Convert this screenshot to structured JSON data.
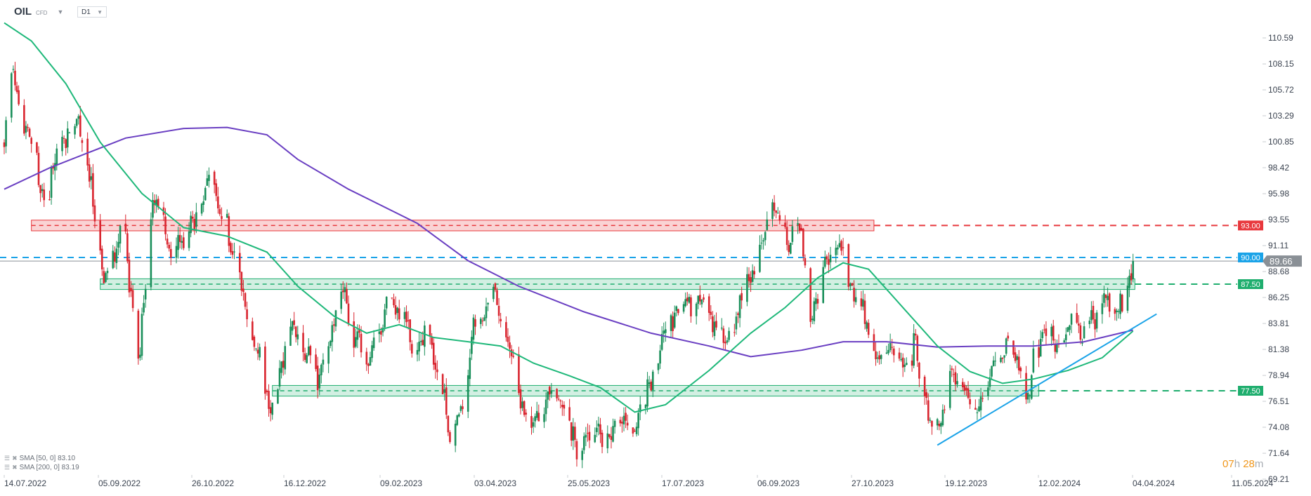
{
  "header": {
    "symbol": "OIL",
    "instrument_type": "CFD",
    "timeframe": "D1"
  },
  "legend": [
    {
      "label": "SMA [50,  0] 83.10",
      "color": "#1fb87a"
    },
    {
      "label": "SMA [200,  0] 83.19",
      "color": "#6a3fc2"
    }
  ],
  "countdown": {
    "hours": "07",
    "h_unit": "h",
    "minutes": "28",
    "m_unit": "m"
  },
  "colors": {
    "up": "#1a8f5a",
    "down": "#d9252f",
    "sma50": "#1fb87a",
    "sma200": "#6a3fc2",
    "resistance": "#e8383d",
    "support": "#1fae6e",
    "level_blue": "#1aa3e8",
    "price_line": "#8a9096",
    "trendline": "#1aa3e8"
  },
  "chart_data": {
    "type": "candlestick",
    "title": "",
    "y_ticks": [
      "110.59",
      "108.15",
      "105.72",
      "103.29",
      "100.85",
      "98.42",
      "95.98",
      "93.55",
      "91.11",
      "88.68",
      "86.25",
      "83.81",
      "81.38",
      "78.94",
      "76.51",
      "74.08",
      "71.64",
      "69.21"
    ],
    "ylim": [
      69.21,
      110.59
    ],
    "x_ticks": [
      "14.07.2022",
      "05.09.2022",
      "26.10.2022",
      "16.12.2022",
      "09.02.2023",
      "03.04.2023",
      "25.05.2023",
      "17.07.2023",
      "06.09.2023",
      "27.10.2023",
      "19.12.2023",
      "12.02.2024",
      "04.04.2024",
      "11.05.2024"
    ],
    "xlim": [
      "2022-07-14",
      "2024-05-11"
    ],
    "last_price": "89.66",
    "close_path": [
      [
        "2022-07-14",
        100.8
      ],
      [
        "2022-07-18",
        107.1
      ],
      [
        "2022-07-25",
        102.3
      ],
      [
        "2022-08-03",
        96.0
      ],
      [
        "2022-08-12",
        98.4
      ],
      [
        "2022-08-26",
        102.3
      ],
      [
        "2022-09-07",
        88.1
      ],
      [
        "2022-09-19",
        92.0
      ],
      [
        "2022-09-26",
        82.5
      ],
      [
        "2022-10-05",
        96.0
      ],
      [
        "2022-10-12",
        92.0
      ],
      [
        "2022-10-21",
        90.5
      ],
      [
        "2022-11-04",
        97.6
      ],
      [
        "2022-11-14",
        93.6
      ],
      [
        "2022-11-22",
        86.5
      ],
      [
        "2022-12-01",
        81.7
      ],
      [
        "2022-12-08",
        76.2
      ],
      [
        "2022-12-20",
        83.3
      ],
      [
        "2023-01-03",
        78.6
      ],
      [
        "2023-01-16",
        86.5
      ],
      [
        "2023-01-30",
        80.9
      ],
      [
        "2023-02-13",
        84.9
      ],
      [
        "2023-02-27",
        82.5
      ],
      [
        "2023-03-06",
        84.1
      ],
      [
        "2023-03-17",
        72.2
      ],
      [
        "2023-03-24",
        77.0
      ],
      [
        "2023-03-31",
        84.1
      ],
      [
        "2023-04-10",
        86.5
      ],
      [
        "2023-04-19",
        80.9
      ],
      [
        "2023-05-01",
        72.2
      ],
      [
        "2023-05-11",
        77.0
      ],
      [
        "2023-05-25",
        73.0
      ],
      [
        "2023-06-08",
        73.8
      ],
      [
        "2023-06-22",
        74.6
      ],
      [
        "2023-07-03",
        77.0
      ],
      [
        "2023-07-10",
        80.9
      ],
      [
        "2023-07-24",
        85.7
      ],
      [
        "2023-08-04",
        86.5
      ],
      [
        "2023-08-11",
        84.1
      ],
      [
        "2023-08-21",
        82.5
      ],
      [
        "2023-08-30",
        88.1
      ],
      [
        "2023-09-06",
        91.2
      ],
      [
        "2023-09-15",
        94.4
      ],
      [
        "2023-09-20",
        91.2
      ],
      [
        "2023-09-27",
        93.6
      ],
      [
        "2023-10-02",
        84.9
      ],
      [
        "2023-10-09",
        88.1
      ],
      [
        "2023-10-16",
        92.0
      ],
      [
        "2023-10-23",
        88.1
      ],
      [
        "2023-10-30",
        84.9
      ],
      [
        "2023-11-06",
        80.1
      ],
      [
        "2023-11-13",
        81.7
      ],
      [
        "2023-11-20",
        80.9
      ],
      [
        "2023-11-29",
        82.5
      ],
      [
        "2023-12-06",
        74.6
      ],
      [
        "2023-12-11",
        73.0
      ],
      [
        "2023-12-20",
        79.3
      ],
      [
        "2023-12-29",
        77.0
      ],
      [
        "2024-01-11",
        78.6
      ],
      [
        "2024-01-19",
        81.7
      ],
      [
        "2024-01-29",
        78.6
      ],
      [
        "2024-02-07",
        82.5
      ],
      [
        "2024-02-21",
        82.5
      ],
      [
        "2024-03-01",
        82.5
      ],
      [
        "2024-03-11",
        85.7
      ],
      [
        "2024-03-20",
        84.9
      ],
      [
        "2024-03-25",
        86.9
      ],
      [
        "2024-03-28",
        89.66
      ]
    ],
    "sma50": [
      [
        "2022-07-14",
        112.0
      ],
      [
        "2022-07-29",
        110.3
      ],
      [
        "2022-08-17",
        106.3
      ],
      [
        "2022-09-05",
        100.8
      ],
      [
        "2022-09-28",
        96.0
      ],
      [
        "2022-10-21",
        92.8
      ],
      [
        "2022-11-14",
        92.0
      ],
      [
        "2022-12-06",
        90.5
      ],
      [
        "2022-12-23",
        87.3
      ],
      [
        "2023-01-12",
        84.5
      ],
      [
        "2023-01-30",
        82.9
      ],
      [
        "2023-02-17",
        83.7
      ],
      [
        "2023-03-08",
        82.5
      ],
      [
        "2023-03-27",
        82.1
      ],
      [
        "2023-04-14",
        81.7
      ],
      [
        "2023-05-02",
        80.1
      ],
      [
        "2023-05-22",
        78.9
      ],
      [
        "2023-06-08",
        77.8
      ],
      [
        "2023-06-27",
        75.5
      ],
      [
        "2023-07-14",
        76.2
      ],
      [
        "2023-08-07",
        79.4
      ],
      [
        "2023-08-30",
        82.9
      ],
      [
        "2023-09-18",
        85.3
      ],
      [
        "2023-10-06",
        88.1
      ],
      [
        "2023-10-20",
        89.5
      ],
      [
        "2023-11-03",
        88.9
      ],
      [
        "2023-11-22",
        85.3
      ],
      [
        "2023-12-11",
        81.7
      ],
      [
        "2023-12-29",
        79.3
      ],
      [
        "2024-01-16",
        78.2
      ],
      [
        "2024-02-02",
        78.6
      ],
      [
        "2024-02-21",
        79.4
      ],
      [
        "2024-03-11",
        80.6
      ],
      [
        "2024-03-28",
        83.1
      ]
    ],
    "sma200": [
      [
        "2022-07-14",
        96.4
      ],
      [
        "2022-08-08",
        98.4
      ],
      [
        "2022-09-19",
        101.2
      ],
      [
        "2022-10-21",
        102.1
      ],
      [
        "2022-11-14",
        102.2
      ],
      [
        "2022-12-06",
        101.5
      ],
      [
        "2022-12-23",
        99.2
      ],
      [
        "2023-01-20",
        96.4
      ],
      [
        "2023-02-27",
        93.2
      ],
      [
        "2023-03-27",
        89.7
      ],
      [
        "2023-04-24",
        87.3
      ],
      [
        "2023-05-30",
        84.9
      ],
      [
        "2023-07-06",
        82.9
      ],
      [
        "2023-08-07",
        81.7
      ],
      [
        "2023-08-30",
        80.7
      ],
      [
        "2023-09-27",
        81.3
      ],
      [
        "2023-10-20",
        82.1
      ],
      [
        "2023-11-13",
        82.1
      ],
      [
        "2023-12-11",
        81.6
      ],
      [
        "2024-01-08",
        81.7
      ],
      [
        "2024-02-02",
        81.7
      ],
      [
        "2024-03-01",
        82.1
      ],
      [
        "2024-03-28",
        83.19
      ]
    ],
    "zones": [
      {
        "kind": "resistance",
        "low": 92.5,
        "high": 93.5,
        "from": "2022-07-29",
        "to": "2023-11-06",
        "level": "93.00"
      },
      {
        "kind": "support",
        "low": 87.0,
        "high": 88.0,
        "from": "2022-09-05",
        "to": "2024-03-29",
        "level": "87.50"
      },
      {
        "kind": "support",
        "low": 77.0,
        "high": 78.0,
        "from": "2022-12-09",
        "to": "2024-02-05",
        "level": "77.50"
      }
    ],
    "levels": [
      {
        "price": 90.0,
        "label": "90.00"
      }
    ],
    "trendline": [
      [
        "2023-12-11",
        72.4
      ],
      [
        "2024-04-10",
        84.7
      ]
    ]
  }
}
